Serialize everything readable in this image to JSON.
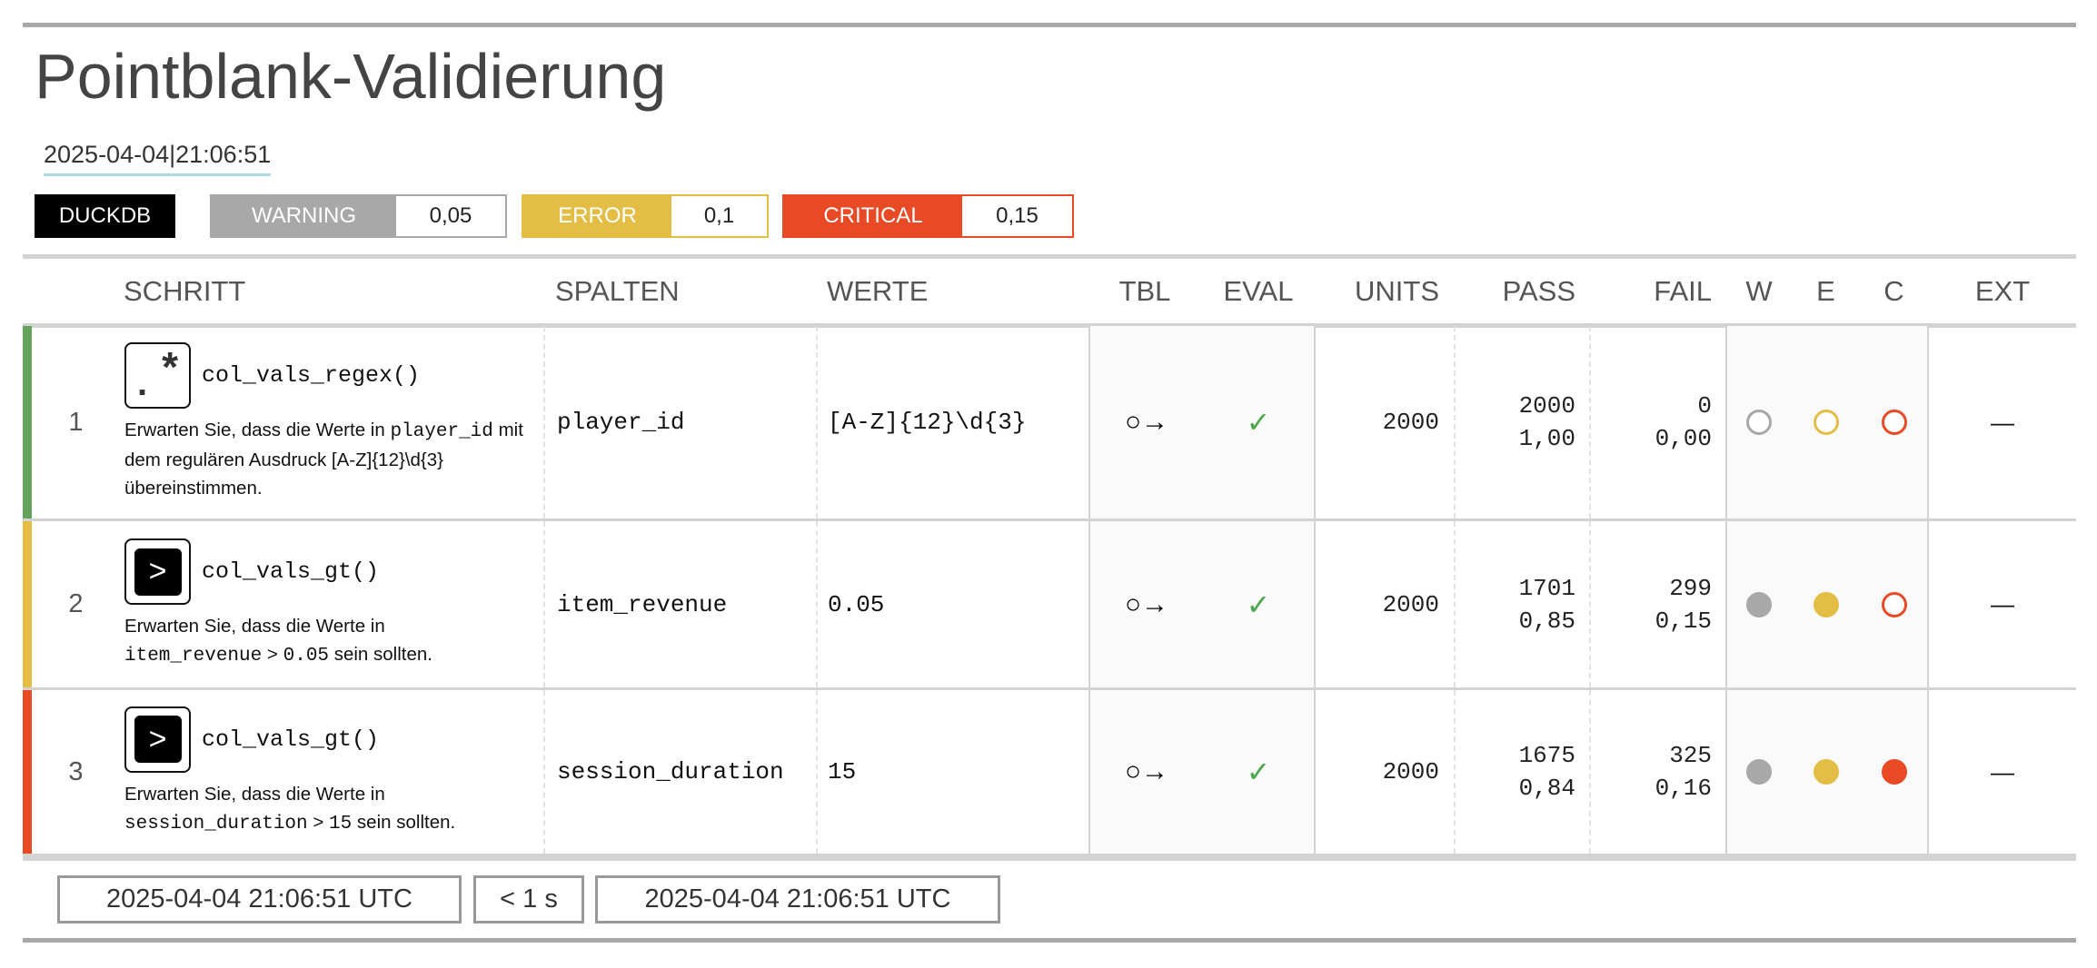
{
  "title": "Pointblank-Validierung",
  "timestamp": "2025-04-04|21:06:51",
  "engine_badge": "DUCKDB",
  "thresholds": {
    "warning": {
      "label": "WARNING",
      "value": "0,05",
      "color": "#a8a8a8"
    },
    "error": {
      "label": "ERROR",
      "value": "0,1",
      "color": "#e4bd44"
    },
    "critical": {
      "label": "CRITICAL",
      "value": "0,15",
      "color": "#e94a26"
    }
  },
  "columns": {
    "step": "SCHRITT",
    "columns": "SPALTEN",
    "values": "WERTE",
    "tbl": "TBL",
    "eval": "EVAL",
    "units": "UNITS",
    "pass": "PASS",
    "fail": "FAIL",
    "w": "W",
    "e": "E",
    "c": "C",
    "ext": "EXT"
  },
  "rows": [
    {
      "index": "1",
      "status_color": "#63a35c",
      "icon": "regex-icon",
      "function": "col_vals_regex()",
      "description": [
        {
          "text": "Erwarten Sie, dass die Werte in ",
          "mono": false
        },
        {
          "text": "player_id",
          "mono": true
        },
        {
          "text": " mit dem regulären Ausdruck [A-Z]{12}\\d{3} übereinstimmen.",
          "mono": false
        }
      ],
      "column": "player_id",
      "values": "[A-Z]{12}\\d{3}",
      "tbl": "○→",
      "eval": "✓",
      "units": "2000",
      "pass_n": "2000",
      "pass_f": "1,00",
      "fail_n": "0",
      "fail_f": "0,00",
      "w": "outline",
      "e": "outline",
      "c": "outline",
      "ext": "—"
    },
    {
      "index": "2",
      "status_color": "#e4bd44",
      "icon": "greater-than-icon",
      "function": "col_vals_gt()",
      "description": [
        {
          "text": "Erwarten Sie, dass die Werte in ",
          "mono": false
        },
        {
          "text": "item_revenue",
          "mono": true
        },
        {
          "text": " > ",
          "mono": false
        },
        {
          "text": "0.05",
          "mono": true
        },
        {
          "text": " sein sollten.",
          "mono": false
        }
      ],
      "column": "item_revenue",
      "values": "0.05",
      "tbl": "○→",
      "eval": "✓",
      "units": "2000",
      "pass_n": "1701",
      "pass_f": "0,85",
      "fail_n": "299",
      "fail_f": "0,15",
      "w": "filled",
      "e": "filled",
      "c": "outline",
      "ext": "—"
    },
    {
      "index": "3",
      "status_color": "#e94a26",
      "icon": "greater-than-icon",
      "function": "col_vals_gt()",
      "description": [
        {
          "text": "Erwarten Sie, dass die Werte in ",
          "mono": false
        },
        {
          "text": "session_duration",
          "mono": true
        },
        {
          "text": " > ",
          "mono": false
        },
        {
          "text": "15",
          "mono": true
        },
        {
          "text": " sein sollten.",
          "mono": false
        }
      ],
      "column": "session_duration",
      "values": "15",
      "tbl": "○→",
      "eval": "✓",
      "units": "2000",
      "pass_n": "1675",
      "pass_f": "0,84",
      "fail_n": "325",
      "fail_f": "0,16",
      "w": "filled",
      "e": "filled",
      "c": "filled",
      "ext": "—"
    }
  ],
  "footer": {
    "start_time": "2025-04-04 21:06:51 UTC",
    "duration": "< 1 s",
    "end_time": "2025-04-04 21:06:51 UTC"
  }
}
